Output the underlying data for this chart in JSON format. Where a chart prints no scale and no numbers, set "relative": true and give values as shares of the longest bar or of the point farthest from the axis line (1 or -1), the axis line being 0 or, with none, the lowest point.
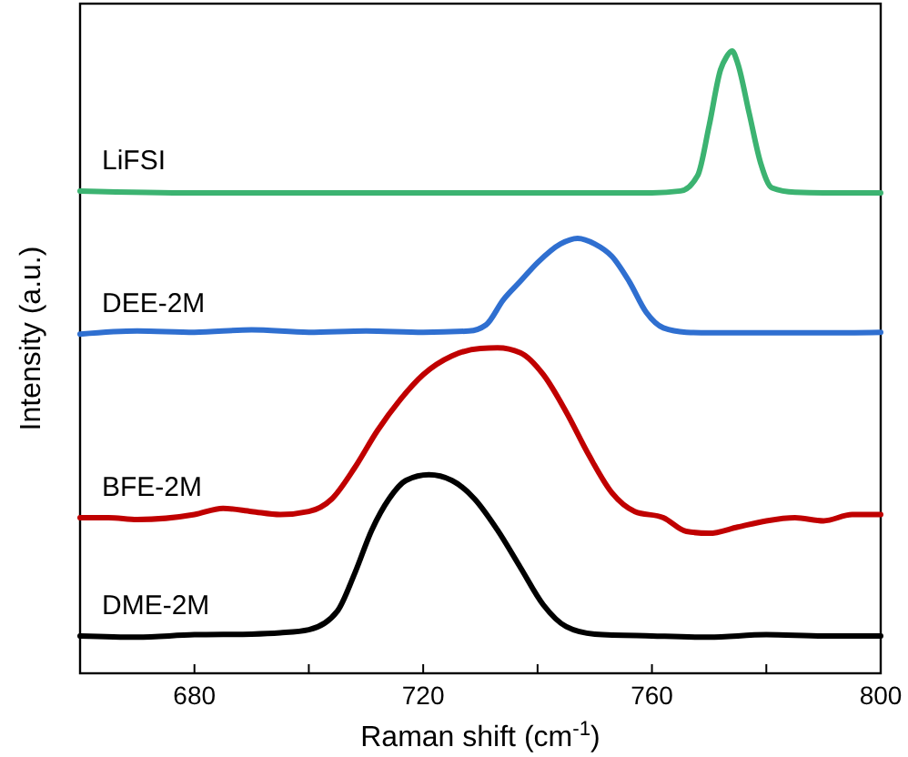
{
  "chart_data": {
    "type": "line",
    "relative": true,
    "xlabel": "Raman shift (cm$^{-1}$)",
    "ylabel": "Intensity (a.u.)",
    "xlim": [
      660,
      800
    ],
    "xticks": [
      {
        "value": 660,
        "label": null
      },
      680,
      {
        "value": 700,
        "label": null
      },
      720,
      {
        "value": 740,
        "label": null
      },
      760,
      {
        "value": 780,
        "label": null
      },
      800
    ],
    "legend": false,
    "marker": "none",
    "line_style": "solid",
    "series": [
      {
        "name": "DME-2M",
        "color": "#000000",
        "x": [
          660,
          670,
          680,
          690,
          695,
          700,
          705,
          708,
          711,
          714,
          717,
          721,
          725,
          729,
          733,
          737,
          741,
          745,
          750,
          760,
          770,
          780,
          790,
          800
        ],
        "values": [
          0.06,
          0.058,
          0.062,
          0.063,
          0.065,
          0.07,
          0.1,
          0.16,
          0.23,
          0.28,
          0.31,
          0.319,
          0.31,
          0.28,
          0.23,
          0.17,
          0.11,
          0.075,
          0.063,
          0.06,
          0.058,
          0.062,
          0.06,
          0.06
        ]
      },
      {
        "name": "BFE-2M",
        "color": "#c00000",
        "x": [
          660,
          665,
          670,
          680,
          685,
          690,
          695,
          700,
          704,
          708,
          712,
          716,
          720,
          725,
          730,
          733,
          737,
          741,
          745,
          749,
          753,
          757,
          762,
          766,
          770,
          775,
          780,
          785,
          790,
          795,
          800
        ],
        "values": [
          0.25,
          0.25,
          0.247,
          0.255,
          0.265,
          0.26,
          0.255,
          0.26,
          0.28,
          0.33,
          0.39,
          0.44,
          0.48,
          0.51,
          0.522,
          0.523,
          0.515,
          0.48,
          0.42,
          0.35,
          0.29,
          0.26,
          0.25,
          0.228,
          0.225,
          0.235,
          0.245,
          0.25,
          0.245,
          0.255,
          0.255
        ]
      },
      {
        "name": "DEE-2M",
        "color": "#2f6fd0",
        "x": [
          660,
          670,
          680,
          690,
          700,
          710,
          720,
          728,
          731,
          734,
          737,
          740,
          744,
          747,
          750,
          753,
          756,
          759,
          762,
          766,
          770,
          780,
          790,
          800
        ],
        "values": [
          0.545,
          0.55,
          0.548,
          0.552,
          0.548,
          0.55,
          0.548,
          0.55,
          0.56,
          0.6,
          0.63,
          0.66,
          0.69,
          0.699,
          0.69,
          0.67,
          0.63,
          0.58,
          0.555,
          0.548,
          0.547,
          0.547,
          0.547,
          0.548
        ]
      },
      {
        "name": "LiFSI",
        "color": "#3cb371",
        "x": [
          660,
          680,
          700,
          720,
          740,
          760,
          765,
          768,
          770,
          772,
          773,
          774,
          775,
          777,
          779,
          781,
          785,
          790,
          800
        ],
        "values": [
          0.775,
          0.772,
          0.772,
          0.772,
          0.772,
          0.772,
          0.775,
          0.8,
          0.88,
          0.97,
          0.99,
          1.0,
          0.98,
          0.9,
          0.82,
          0.78,
          0.773,
          0.772,
          0.772
        ]
      }
    ]
  }
}
